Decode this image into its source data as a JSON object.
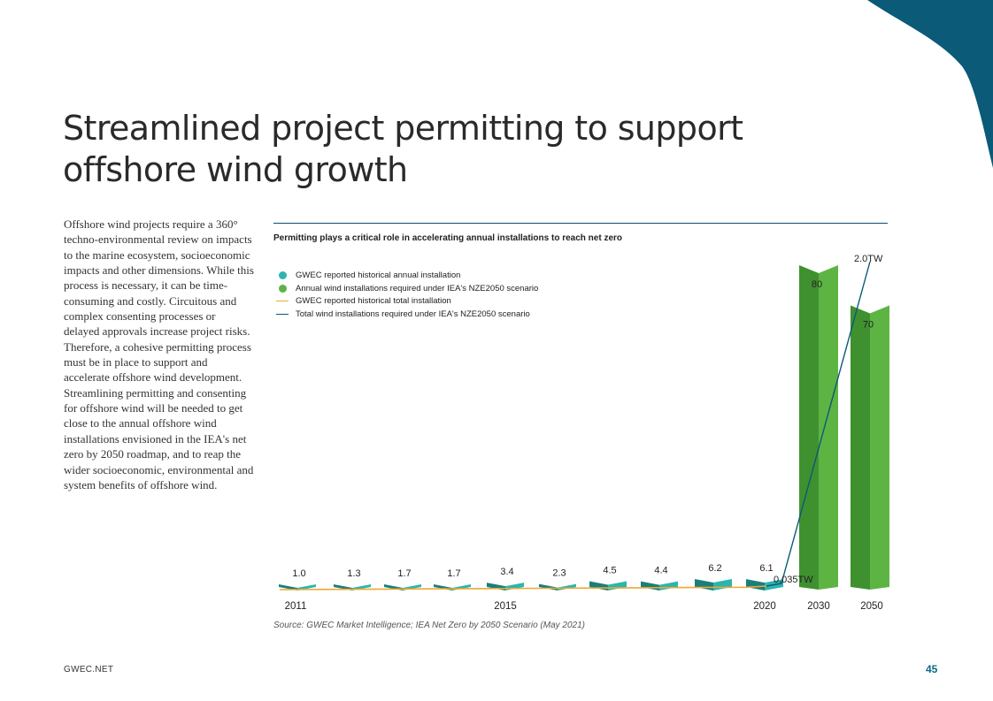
{
  "page": {
    "title_lines": [
      "Streamlined project permitting to support",
      "offshore wind growth"
    ],
    "body": "Offshore wind projects require a 360° techno-environmental review on impacts to the marine ecosystem, socioeconomic impacts and other dimensions. While this process is necessary, it can be time-consuming and costly. Circuitous and complex consenting processes or delayed approvals increase project risks. Therefore, a cohesive permitting process must be in place to support and accelerate offshore wind development. Streamlining permitting and consenting for offshore wind will be needed to get close to the annual offshore wind installations envisioned in the IEA's net zero by 2050 roadmap, and to reap the wider socioeconomic, environmental and system benefits of offshore wind.",
    "footer_left": "GWEC.NET",
    "page_number": "45",
    "accent_color": "#0a5a78"
  },
  "chart_data": {
    "type": "bar",
    "title": "Permitting plays a critical role in accelerating annual installations to reach net zero",
    "legend": [
      {
        "label": "GWEC reported historical annual installation",
        "symbol": "dot",
        "color": "#2bb5b0"
      },
      {
        "label": "Annual wind installations required under IEA's NZE2050 scenario",
        "symbol": "dot",
        "color": "#5db443"
      },
      {
        "label": "GWEC reported historical total installation",
        "symbol": "line",
        "color": "#f0a830"
      },
      {
        "label": "Total wind installations required under IEA's NZE2050 scenario",
        "symbol": "line",
        "color": "#0a5a78"
      }
    ],
    "categories": [
      "2011",
      "2012",
      "2013",
      "2014",
      "2015",
      "2016",
      "2017",
      "2018",
      "2019",
      "2020",
      "2030",
      "2050"
    ],
    "x_tick_labels": [
      "2011",
      "2015",
      "2020",
      "2030",
      "2050"
    ],
    "historical_annual": {
      "years": [
        "2011",
        "2012",
        "2013",
        "2014",
        "2015",
        "2016",
        "2017",
        "2018",
        "2019",
        "2020"
      ],
      "values": [
        1.0,
        1.3,
        1.7,
        1.7,
        3.4,
        2.3,
        4.5,
        4.4,
        6.2,
        6.1
      ],
      "labels": [
        "1.0",
        "1.3",
        "1.7",
        "1.7",
        "3.4",
        "2.3",
        "4.5",
        "4.4",
        "6.2",
        "6.1"
      ]
    },
    "nze_annual": {
      "years": [
        "2030",
        "2050"
      ],
      "values": [
        80,
        70
      ],
      "labels": [
        "80",
        "70"
      ]
    },
    "total_labels": {
      "2020": "0.035TW",
      "2050": "2.0TW"
    },
    "nze_total_tw": {
      "2020": 0.035,
      "2050": 2.0
    },
    "source": "Source: GWEC Market Intelligence; IEA Net Zero by 2050 Scenario (May 2021)"
  }
}
